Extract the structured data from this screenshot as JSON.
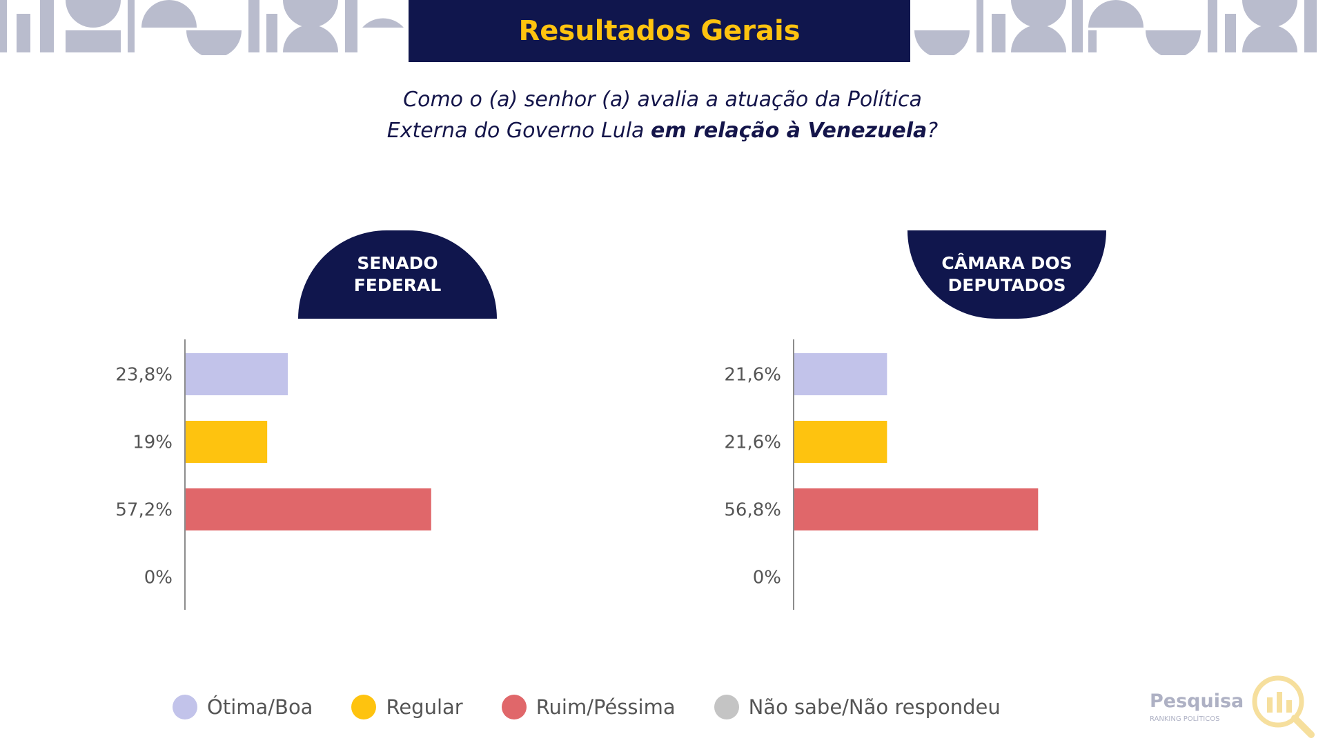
{
  "header": {
    "title": "Resultados Gerais"
  },
  "question": {
    "line1": "Como o (a) senhor (a) avalia a atuação da Política",
    "line2_prefix": "Externa do Governo Lula ",
    "line2_bold": "em relação à Venezuela",
    "line2_suffix": "?"
  },
  "panels": {
    "senado": {
      "line1": "SENADO",
      "line2": "FEDERAL"
    },
    "camara": {
      "line1": "CÂMARA DOS",
      "line2": "DEPUTADOS"
    }
  },
  "colors": {
    "navy": "#10164d",
    "gold": "#fec30f",
    "otima": "#c2c3ea",
    "regular": "#fec30f",
    "ruim": "#e0676a",
    "nao_sabe": "#c4c4c4"
  },
  "chart_data": [
    {
      "type": "bar",
      "orientation": "horizontal",
      "categories": [
        "Ótima/Boa",
        "Regular",
        "Ruim/Péssima",
        "Não sabe/Não respondeu"
      ],
      "values": [
        23.8,
        19,
        57.2,
        0
      ],
      "value_labels": [
        "23,8%",
        "19%",
        "57,2%",
        "0%"
      ],
      "unit": "%",
      "xlim": [
        0,
        100
      ]
    },
    {
      "type": "bar",
      "orientation": "horizontal",
      "categories": [
        "Ótima/Boa",
        "Regular",
        "Ruim/Péssima",
        "Não sabe/Não respondeu"
      ],
      "values": [
        21.6,
        21.6,
        56.8,
        0
      ],
      "value_labels": [
        "21,6%",
        "21,6%",
        "56,8%",
        "0%"
      ],
      "unit": "%",
      "xlim": [
        0,
        100
      ]
    }
  ],
  "legend": [
    {
      "label": "Ótima/Boa",
      "color": "#c2c3ea"
    },
    {
      "label": "Regular",
      "color": "#fec30f"
    },
    {
      "label": "Ruim/Péssima",
      "color": "#e0676a"
    },
    {
      "label": "Não sabe/Não respondeu",
      "color": "#c4c4c4"
    }
  ],
  "logo": {
    "main": "Pesquisa",
    "sub": "RANKING POLÍTICOS"
  }
}
